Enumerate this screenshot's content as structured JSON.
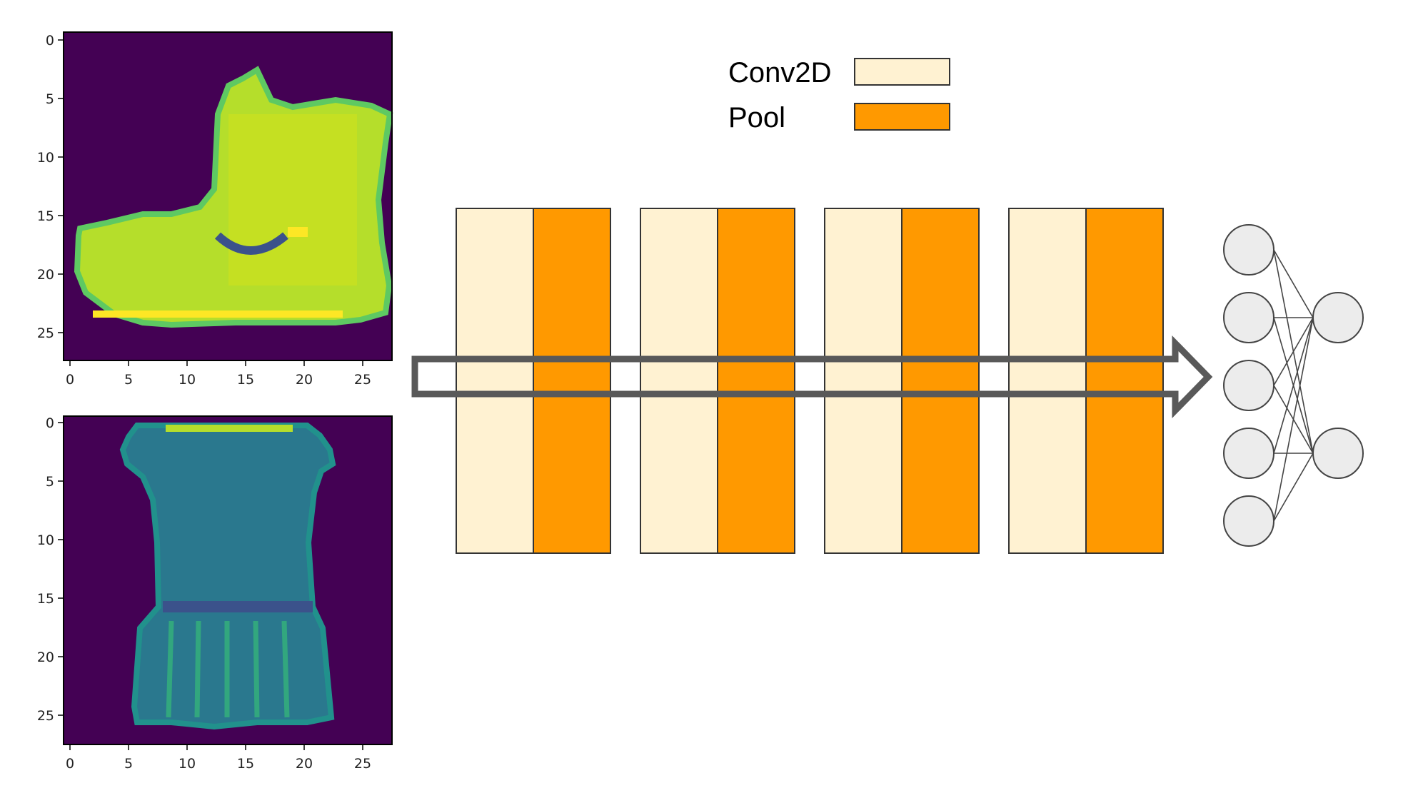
{
  "legend": {
    "items": [
      {
        "label": "Conv2D",
        "color": "#fff2d2"
      },
      {
        "label": "Pool",
        "color": "#ff9900"
      }
    ]
  },
  "images": [
    {
      "subject": "ankle boot",
      "x_ticks": [
        "0",
        "5",
        "10",
        "15",
        "20",
        "25"
      ],
      "y_ticks": [
        "0",
        "5",
        "10",
        "15",
        "20",
        "25"
      ]
    },
    {
      "subject": "dress",
      "x_ticks": [
        "0",
        "5",
        "10",
        "15",
        "20",
        "25"
      ],
      "y_ticks": [
        "0",
        "5",
        "10",
        "15",
        "20",
        "25"
      ]
    }
  ],
  "blocks": [
    {
      "layers": [
        "Conv2D",
        "Pool"
      ]
    },
    {
      "layers": [
        "Conv2D",
        "Pool"
      ]
    },
    {
      "layers": [
        "Conv2D",
        "Pool"
      ]
    },
    {
      "layers": [
        "Conv2D",
        "Pool"
      ]
    }
  ],
  "network": {
    "input_nodes": 5,
    "output_nodes": 2,
    "node_fill": "#ececec",
    "edge_color": "#444444"
  },
  "colors": {
    "conv": "#fff2d2",
    "pool": "#ff9900",
    "arrow": "#595959",
    "image_background": "#440154"
  }
}
